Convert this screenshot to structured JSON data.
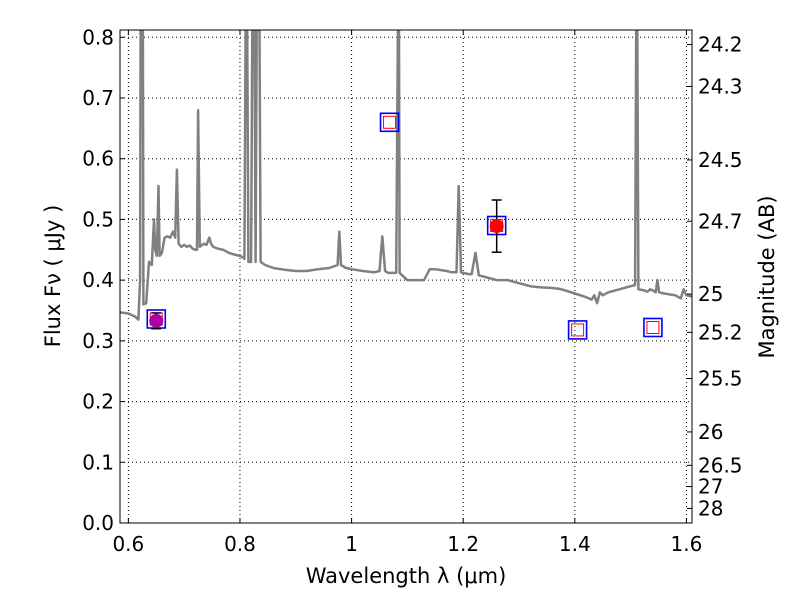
{
  "chart_data": {
    "type": "line",
    "xlabel": "Wavelength  λ (μm)",
    "ylabel": "Flux  Fν  ( μJy )",
    "ylabel_right": "Magnitude (AB)",
    "xlim": [
      0.585,
      1.61
    ],
    "ylim": [
      0.0,
      0.812
    ],
    "grid": true,
    "x_ticks": [
      0.6,
      0.8,
      1.0,
      1.2,
      1.4,
      1.6
    ],
    "x_tick_labels": [
      "0.6",
      "0.8",
      "1",
      "1.2",
      "1.4",
      "1.6"
    ],
    "y_ticks": [
      0.0,
      0.1,
      0.2,
      0.3,
      0.4,
      0.5,
      0.6,
      0.7,
      0.8
    ],
    "y_tick_labels": [
      "0.0",
      "0.1",
      "0.2",
      "0.3",
      "0.4",
      "0.5",
      "0.6",
      "0.7",
      "0.8"
    ],
    "mag_ticks": [
      {
        "label": "24.2",
        "flux": 0.788
      },
      {
        "label": "24.3",
        "flux": 0.719
      },
      {
        "label": "24.5",
        "flux": 0.598
      },
      {
        "label": "24.7",
        "flux": 0.497
      },
      {
        "label": "25",
        "flux": 0.377
      },
      {
        "label": "25.2",
        "flux": 0.314
      },
      {
        "label": "25.5",
        "flux": 0.238
      },
      {
        "label": "26",
        "flux": 0.15
      },
      {
        "label": "26.5",
        "flux": 0.095
      },
      {
        "label": "27",
        "flux": 0.06
      },
      {
        "label": "28",
        "flux": 0.024
      }
    ],
    "series": [
      {
        "kind": "template-spectrum",
        "color": "#808080",
        "points": [
          [
            0.585,
            0.347
          ],
          [
            0.6,
            0.345
          ],
          [
            0.612,
            0.34
          ],
          [
            0.618,
            0.335
          ],
          [
            0.621,
            0.4
          ],
          [
            0.622,
            0.812
          ],
          [
            0.626,
            0.812
          ],
          [
            0.627,
            0.36
          ],
          [
            0.632,
            0.362
          ],
          [
            0.637,
            0.43
          ],
          [
            0.642,
            0.425
          ],
          [
            0.646,
            0.5
          ],
          [
            0.648,
            0.45
          ],
          [
            0.651,
            0.44
          ],
          [
            0.654,
            0.555
          ],
          [
            0.656,
            0.44
          ],
          [
            0.66,
            0.445
          ],
          [
            0.665,
            0.47
          ],
          [
            0.67,
            0.472
          ],
          [
            0.675,
            0.47
          ],
          [
            0.68,
            0.48
          ],
          [
            0.684,
            0.47
          ],
          [
            0.687,
            0.582
          ],
          [
            0.69,
            0.46
          ],
          [
            0.695,
            0.455
          ],
          [
            0.7,
            0.458
          ],
          [
            0.705,
            0.455
          ],
          [
            0.71,
            0.457
          ],
          [
            0.715,
            0.452
          ],
          [
            0.72,
            0.45
          ],
          [
            0.723,
            0.45
          ],
          [
            0.725,
            0.68
          ],
          [
            0.728,
            0.455
          ],
          [
            0.735,
            0.46
          ],
          [
            0.74,
            0.458
          ],
          [
            0.745,
            0.47
          ],
          [
            0.748,
            0.46
          ],
          [
            0.752,
            0.455
          ],
          [
            0.76,
            0.452
          ],
          [
            0.77,
            0.45
          ],
          [
            0.78,
            0.445
          ],
          [
            0.79,
            0.442
          ],
          [
            0.8,
            0.44
          ],
          [
            0.805,
            0.438
          ],
          [
            0.808,
            0.435
          ],
          [
            0.81,
            0.812
          ],
          [
            0.813,
            0.812
          ],
          [
            0.815,
            0.43
          ],
          [
            0.818,
            0.43
          ],
          [
            0.82,
            0.43
          ],
          [
            0.822,
            0.812
          ],
          [
            0.826,
            0.812
          ],
          [
            0.828,
            0.43
          ],
          [
            0.83,
            0.812
          ],
          [
            0.835,
            0.812
          ],
          [
            0.837,
            0.43
          ],
          [
            0.845,
            0.425
          ],
          [
            0.86,
            0.42
          ],
          [
            0.88,
            0.417
          ],
          [
            0.9,
            0.415
          ],
          [
            0.92,
            0.415
          ],
          [
            0.94,
            0.418
          ],
          [
            0.96,
            0.42
          ],
          [
            0.975,
            0.425
          ],
          [
            0.978,
            0.48
          ],
          [
            0.981,
            0.425
          ],
          [
            0.99,
            0.42
          ],
          [
            1.0,
            0.418
          ],
          [
            1.02,
            0.415
          ],
          [
            1.04,
            0.413
          ],
          [
            1.05,
            0.415
          ],
          [
            1.055,
            0.472
          ],
          [
            1.06,
            0.415
          ],
          [
            1.065,
            0.412
          ],
          [
            1.075,
            0.412
          ],
          [
            1.08,
            0.412
          ],
          [
            1.083,
            0.812
          ],
          [
            1.085,
            0.812
          ],
          [
            1.086,
            0.412
          ],
          [
            1.1,
            0.4
          ],
          [
            1.13,
            0.4
          ],
          [
            1.14,
            0.418
          ],
          [
            1.15,
            0.418
          ],
          [
            1.17,
            0.415
          ],
          [
            1.18,
            0.413
          ],
          [
            1.188,
            0.413
          ],
          [
            1.192,
            0.555
          ],
          [
            1.196,
            0.413
          ],
          [
            1.2,
            0.412
          ],
          [
            1.21,
            0.41
          ],
          [
            1.215,
            0.41
          ],
          [
            1.222,
            0.445
          ],
          [
            1.228,
            0.408
          ],
          [
            1.24,
            0.405
          ],
          [
            1.26,
            0.4
          ],
          [
            1.28,
            0.4
          ],
          [
            1.3,
            0.395
          ],
          [
            1.32,
            0.39
          ],
          [
            1.34,
            0.388
          ],
          [
            1.36,
            0.387
          ],
          [
            1.37,
            0.386
          ],
          [
            1.38,
            0.384
          ],
          [
            1.4,
            0.378
          ],
          [
            1.42,
            0.372
          ],
          [
            1.43,
            0.368
          ],
          [
            1.435,
            0.375
          ],
          [
            1.44,
            0.362
          ],
          [
            1.445,
            0.38
          ],
          [
            1.45,
            0.375
          ],
          [
            1.46,
            0.38
          ],
          [
            1.48,
            0.385
          ],
          [
            1.5,
            0.39
          ],
          [
            1.508,
            0.392
          ],
          [
            1.51,
            0.812
          ],
          [
            1.512,
            0.812
          ],
          [
            1.514,
            0.385
          ],
          [
            1.52,
            0.384
          ],
          [
            1.525,
            0.383
          ],
          [
            1.53,
            0.381
          ],
          [
            1.535,
            0.385
          ],
          [
            1.54,
            0.383
          ],
          [
            1.545,
            0.38
          ],
          [
            1.548,
            0.4
          ],
          [
            1.551,
            0.38
          ],
          [
            1.56,
            0.378
          ],
          [
            1.58,
            0.375
          ],
          [
            1.59,
            0.37
          ],
          [
            1.595,
            0.385
          ],
          [
            1.6,
            0.375
          ],
          [
            1.61,
            0.373
          ]
        ]
      }
    ],
    "model_points": [
      {
        "x": 0.65,
        "y": 0.336
      },
      {
        "x": 1.068,
        "y": 0.66
      },
      {
        "x": 1.26,
        "y": 0.49
      },
      {
        "x": 1.405,
        "y": 0.318
      },
      {
        "x": 1.54,
        "y": 0.322
      }
    ],
    "observed_points": [
      {
        "x": 0.65,
        "y": 0.333,
        "err": 0.013,
        "color": "#aa00aa"
      },
      {
        "x": 1.26,
        "y": 0.489,
        "err": 0.043,
        "color": "#ff0000"
      }
    ],
    "colors": {
      "spectrum": "#808080",
      "model_outer": "#0000ff",
      "model_inner": "#ff0000",
      "grid": "#000000"
    }
  }
}
